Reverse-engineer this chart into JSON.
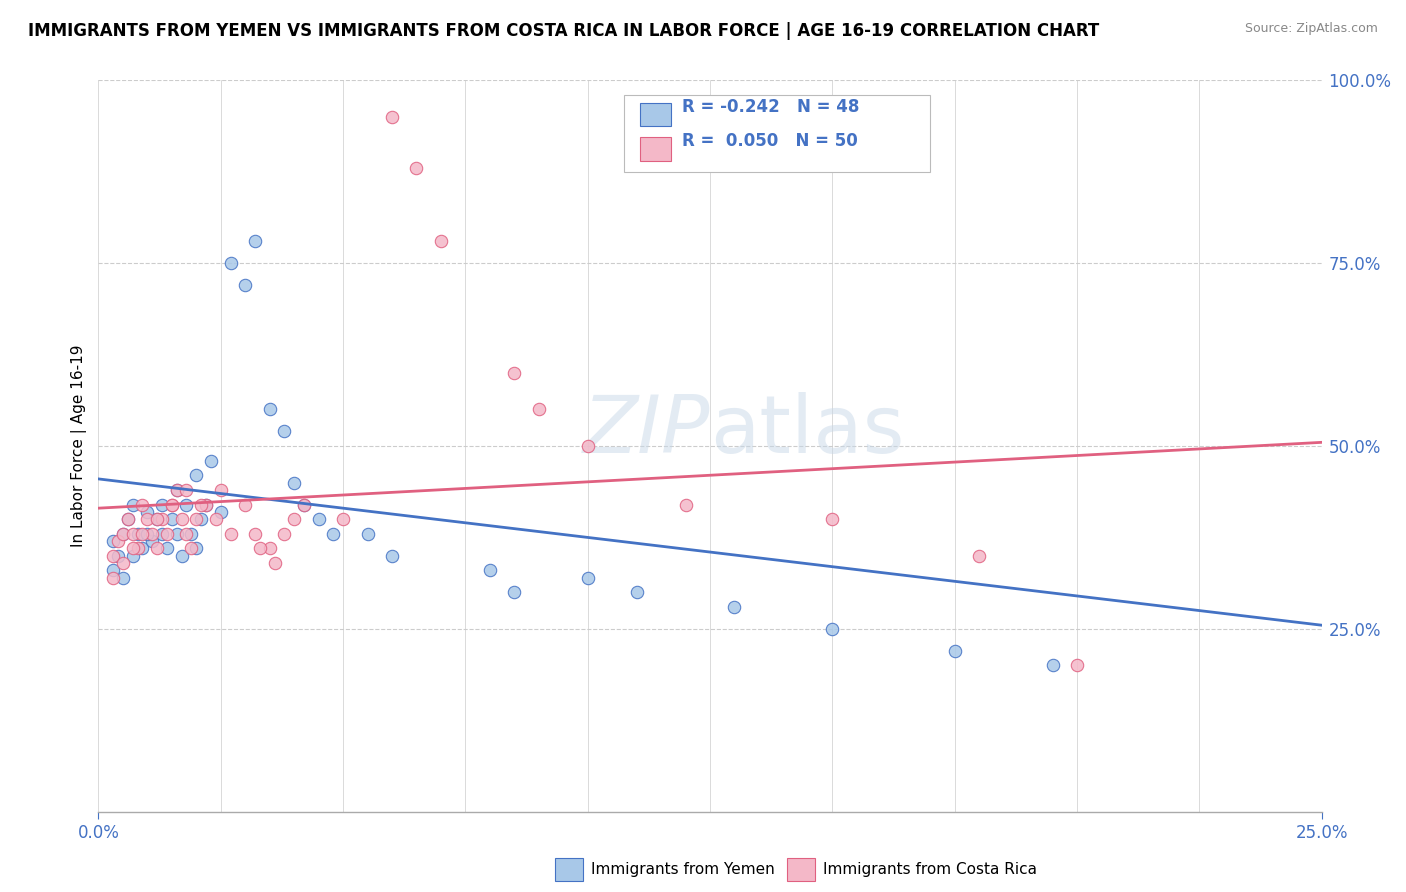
{
  "title": "IMMIGRANTS FROM YEMEN VS IMMIGRANTS FROM COSTA RICA IN LABOR FORCE | AGE 16-19 CORRELATION CHART",
  "source": "Source: ZipAtlas.com",
  "ylabel": "In Labor Force | Age 16-19",
  "xlim": [
    0.0,
    0.25
  ],
  "ylim": [
    0.0,
    1.0
  ],
  "ytick_values": [
    0.25,
    0.5,
    0.75,
    1.0
  ],
  "ytick_labels": [
    "25.0%",
    "50.0%",
    "75.0%",
    "100.0%"
  ],
  "color_yemen": "#a8c8e8",
  "color_costa_rica": "#f4b8c8",
  "color_blue": "#4472c4",
  "color_pink": "#e06080",
  "color_r_text": "#4472c4",
  "watermark_text": "ZIPatlas",
  "yemen_line_x0": 0.0,
  "yemen_line_y0": 0.455,
  "yemen_line_x1": 0.25,
  "yemen_line_y1": 0.255,
  "costa_line_x0": 0.0,
  "costa_line_y0": 0.415,
  "costa_line_x1": 0.25,
  "costa_line_y1": 0.505,
  "yemen_x": [
    0.003,
    0.004,
    0.005,
    0.006,
    0.007,
    0.008,
    0.009,
    0.01,
    0.011,
    0.012,
    0.013,
    0.014,
    0.015,
    0.016,
    0.017,
    0.018,
    0.019,
    0.02,
    0.021,
    0.022,
    0.025,
    0.027,
    0.03,
    0.032,
    0.035,
    0.038,
    0.04,
    0.042,
    0.045,
    0.048,
    0.055,
    0.06,
    0.08,
    0.085,
    0.1,
    0.11,
    0.13,
    0.15,
    0.175,
    0.195,
    0.003,
    0.005,
    0.007,
    0.01,
    0.013,
    0.016,
    0.02,
    0.023
  ],
  "yemen_y": [
    0.37,
    0.35,
    0.38,
    0.4,
    0.42,
    0.38,
    0.36,
    0.41,
    0.37,
    0.4,
    0.38,
    0.36,
    0.4,
    0.38,
    0.35,
    0.42,
    0.38,
    0.36,
    0.4,
    0.42,
    0.41,
    0.75,
    0.72,
    0.78,
    0.55,
    0.52,
    0.45,
    0.42,
    0.4,
    0.38,
    0.38,
    0.35,
    0.33,
    0.3,
    0.32,
    0.3,
    0.28,
    0.25,
    0.22,
    0.2,
    0.33,
    0.32,
    0.35,
    0.38,
    0.42,
    0.44,
    0.46,
    0.48
  ],
  "costa_x": [
    0.003,
    0.004,
    0.005,
    0.006,
    0.007,
    0.008,
    0.009,
    0.01,
    0.011,
    0.012,
    0.013,
    0.014,
    0.015,
    0.016,
    0.017,
    0.018,
    0.019,
    0.02,
    0.022,
    0.025,
    0.03,
    0.032,
    0.035,
    0.038,
    0.04,
    0.042,
    0.05,
    0.06,
    0.065,
    0.07,
    0.085,
    0.09,
    0.1,
    0.12,
    0.15,
    0.18,
    0.2,
    0.003,
    0.005,
    0.007,
    0.009,
    0.012,
    0.015,
    0.018,
    0.021,
    0.024,
    0.027,
    0.033,
    0.036
  ],
  "costa_y": [
    0.35,
    0.37,
    0.38,
    0.4,
    0.38,
    0.36,
    0.42,
    0.4,
    0.38,
    0.36,
    0.4,
    0.38,
    0.42,
    0.44,
    0.4,
    0.38,
    0.36,
    0.4,
    0.42,
    0.44,
    0.42,
    0.38,
    0.36,
    0.38,
    0.4,
    0.42,
    0.4,
    0.95,
    0.88,
    0.78,
    0.6,
    0.55,
    0.5,
    0.42,
    0.4,
    0.35,
    0.2,
    0.32,
    0.34,
    0.36,
    0.38,
    0.4,
    0.42,
    0.44,
    0.42,
    0.4,
    0.38,
    0.36,
    0.34
  ]
}
